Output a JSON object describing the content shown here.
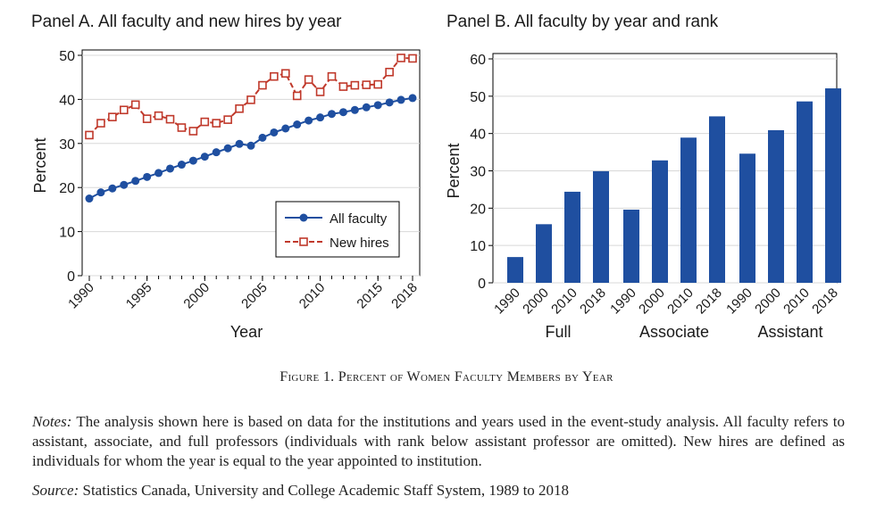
{
  "chart_data": [
    {
      "type": "line",
      "title": "Panel A. All faculty and new hires by year",
      "xlabel": "Year",
      "ylabel": "Percent",
      "ylim": [
        0,
        50
      ],
      "yticks": [
        0,
        10,
        20,
        30,
        40,
        50
      ],
      "xlim": [
        1990,
        2018
      ],
      "xticks": [
        1990,
        1995,
        2000,
        2005,
        2010,
        2015,
        2018
      ],
      "legend_position": "bottom-right",
      "grid": true,
      "x": [
        1990,
        1991,
        1992,
        1993,
        1994,
        1995,
        1996,
        1997,
        1998,
        1999,
        2000,
        2001,
        2002,
        2003,
        2004,
        2005,
        2006,
        2007,
        2008,
        2009,
        2010,
        2011,
        2012,
        2013,
        2014,
        2015,
        2016,
        2017,
        2018
      ],
      "series": [
        {
          "name": "All faculty",
          "color": "#1f4fa0",
          "marker": "circle",
          "values": [
            17.5,
            18.9,
            19.8,
            20.6,
            21.5,
            22.4,
            23.3,
            24.3,
            25.2,
            26.1,
            27.0,
            28.0,
            28.9,
            29.9,
            29.5,
            31.3,
            32.5,
            33.4,
            34.3,
            35.2,
            35.9,
            36.7,
            37.1,
            37.6,
            38.2,
            38.7,
            39.3,
            39.9,
            40.3
          ]
        },
        {
          "name": "New hires",
          "color": "#c0392b",
          "marker": "square",
          "values": [
            31.9,
            34.6,
            36.0,
            37.6,
            38.8,
            35.6,
            36.3,
            35.5,
            33.6,
            32.8,
            34.9,
            34.6,
            35.4,
            37.9,
            39.9,
            43.2,
            45.2,
            45.9,
            40.8,
            44.5,
            41.7,
            45.2,
            42.9,
            43.2,
            43.3,
            43.4,
            46.2,
            49.4,
            49.3
          ]
        }
      ]
    },
    {
      "type": "bar",
      "title": "Panel B. All faculty by year and rank",
      "ylabel": "Percent",
      "ylim": [
        0,
        60
      ],
      "yticks": [
        0,
        10,
        20,
        30,
        40,
        50,
        60
      ],
      "grid": true,
      "color": "#1f4fa0",
      "groups": [
        {
          "name": "Full",
          "categories": [
            "1990",
            "2000",
            "2010",
            "2018"
          ],
          "values": [
            6.9,
            15.7,
            24.4,
            29.9
          ]
        },
        {
          "name": "Associate",
          "categories": [
            "1990",
            "2000",
            "2010",
            "2018"
          ],
          "values": [
            19.6,
            32.8,
            38.9,
            44.6
          ]
        },
        {
          "name": "Assistant",
          "categories": [
            "1990",
            "2000",
            "2010",
            "2018"
          ],
          "values": [
            34.6,
            40.9,
            48.6,
            52.1
          ]
        }
      ]
    }
  ],
  "figure": {
    "caption_prefix": "Figure 1.",
    "caption_text": "Percent of Women Faculty Members by Year",
    "notes_label": "Notes:",
    "notes_text": "The analysis shown here is based on data for the institutions and years used in the event-study analysis. All faculty refers to assistant, associate, and full professors (individuals with rank below assistant professor are omitted). New hires are defined as individuals for whom the year is equal to the year appointed to institution.",
    "source_label": "Source:",
    "source_text": "Statistics Canada, University and College Academic Staff System, 1989 to 2018"
  }
}
